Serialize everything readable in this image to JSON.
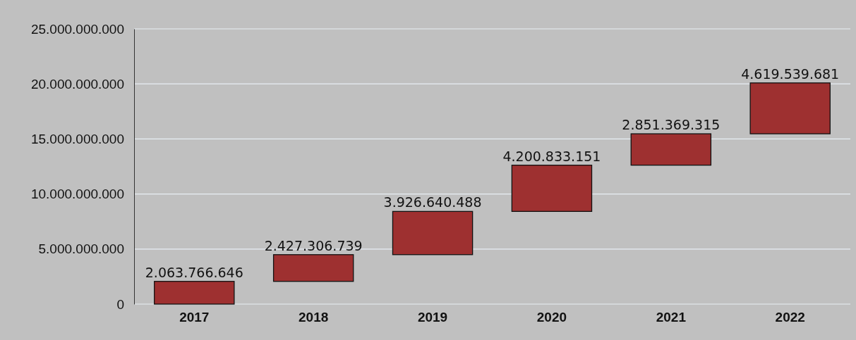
{
  "chart_data": {
    "type": "bar",
    "categories": [
      "2017",
      "2018",
      "2019",
      "2020",
      "2021",
      "2022"
    ],
    "values": [
      2063766646,
      2427306739,
      3926640488,
      4200833151,
      2851369315,
      4619539681
    ],
    "base": [
      0,
      2063766646,
      4491073385,
      8417713873,
      12618547024,
      15469916339
    ],
    "value_labels": [
      "2.063.766.646",
      "2.427.306.739",
      "3.926.640.488",
      "4.200.833.151",
      "2.851.369.315",
      "4.619.539.681"
    ],
    "color": "#9e3030",
    "ylim": [
      0,
      25000000000
    ],
    "yticks": [
      {
        "value": 0,
        "label": "0"
      },
      {
        "value": 5000000000,
        "label": "5.000.000.000"
      },
      {
        "value": 10000000000,
        "label": "10.000.000.000"
      },
      {
        "value": 15000000000,
        "label": "15.000.000.000"
      },
      {
        "value": 20000000000,
        "label": "20.000.000.000"
      },
      {
        "value": 25000000000,
        "label": "25.000.000.000"
      }
    ],
    "grid": "y"
  }
}
